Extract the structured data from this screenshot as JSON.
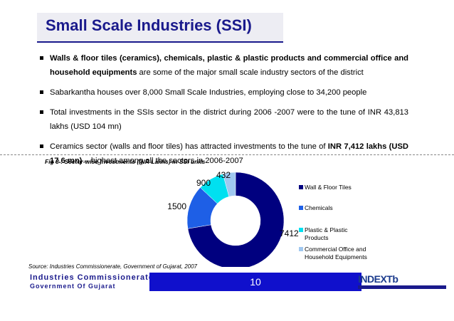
{
  "title": "Small Scale Industries (SSI)",
  "bullets": [
    [
      {
        "text": "Walls & floor tiles (ceramics), chemicals, plastic & plastic products and commercial office and household equipments",
        "bold": true
      },
      {
        "text": " are some of the major small scale industry sectors of the district",
        "bold": false
      }
    ],
    [
      {
        "text": "Sabarkantha houses over 8,000 Small Scale Industries, employing close to 34,200 people",
        "bold": false
      }
    ],
    [
      {
        "text": "Total investments in the SSIs sector in the district during 2006 -2007 were to the tune of INR 43,813 lakhs (USD 104 mn)",
        "bold": false
      }
    ],
    [
      {
        "text": "Ceramics sector (walls and floor tiles) has attracted investments to the tune of ",
        "bold": false
      },
      {
        "text": "INR 7,412 lakhs (USD 17.6 mn)",
        "bold": true
      },
      {
        "text": " – highest among all the sectors in 2006-2007",
        "bold": false
      }
    ]
  ],
  "figure_caption": "Fig 3 : Sector-wise Investments (INR Lakhs) in SSI units",
  "chart_data": {
    "type": "pie",
    "title": "Fig 3 : Sector-wise Investments (INR Lakhs) in SSI units",
    "categories": [
      "Wall & Floor Tiles",
      "Chemicals",
      "Plastic & Plastic Products",
      "Commercial Office  and Household  Equipments"
    ],
    "values": [
      7412,
      1500,
      900,
      432
    ],
    "colors": [
      "#00007f",
      "#1e5fe6",
      "#00e0f0",
      "#a0c8f0"
    ],
    "legend_labels": [
      [
        "Wall & Floor Tiles"
      ],
      [
        "Chemicals"
      ],
      [
        "Plastic & Plastic",
        "Products"
      ],
      [
        "Commercial Office  and",
        "Household  Equipments"
      ]
    ],
    "legend_position": "right"
  },
  "source": "Source: Industries Commissionerate, Government of Gujarat, 2007",
  "footer": {
    "org_line1": "Industries Commissionerate",
    "org_line2": "Government Of Gujarat",
    "page_number": "10",
    "logo_text": "INDEXTb"
  }
}
